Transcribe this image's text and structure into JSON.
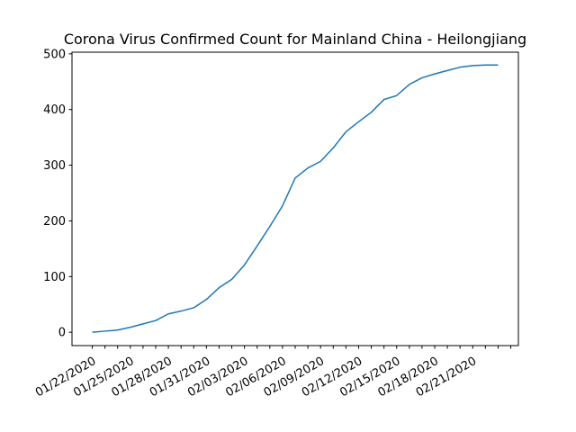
{
  "chart_data": {
    "type": "line",
    "title": "Corona Virus Confirmed Count for Mainland China - Heilongjiang",
    "xlabel": "",
    "ylabel": "",
    "ylim": [
      -23.95,
      502.95
    ],
    "yticks": [
      0,
      100,
      200,
      300,
      400,
      500
    ],
    "x_label_dates": [
      "01/22/2020",
      "01/25/2020",
      "01/28/2020",
      "01/31/2020",
      "02/03/2020",
      "02/06/2020",
      "02/09/2020",
      "02/12/2020",
      "02/15/2020",
      "02/18/2020",
      "02/21/2020"
    ],
    "grid": false,
    "series": [
      {
        "color": "#1f77b4",
        "x": [
          "01/22/2020",
          "01/23/2020",
          "01/24/2020",
          "01/25/2020",
          "01/26/2020",
          "01/27/2020",
          "01/28/2020",
          "01/29/2020",
          "01/30/2020",
          "01/31/2020",
          "02/01/2020",
          "02/02/2020",
          "02/03/2020",
          "02/04/2020",
          "02/05/2020",
          "02/06/2020",
          "02/07/2020",
          "02/08/2020",
          "02/09/2020",
          "02/10/2020",
          "02/11/2020",
          "02/12/2020",
          "02/13/2020",
          "02/14/2020",
          "02/15/2020",
          "02/16/2020",
          "02/17/2020",
          "02/18/2020",
          "02/19/2020",
          "02/20/2020",
          "02/21/2020",
          "02/22/2020",
          "02/23/2020"
        ],
        "values": [
          0,
          2,
          4,
          9,
          15,
          21,
          33,
          38,
          44,
          59,
          80,
          95,
          121,
          155,
          190,
          227,
          277,
          295,
          307,
          331,
          360,
          378,
          395,
          418,
          425,
          445,
          457,
          464,
          470,
          476,
          479,
          480,
          480
        ]
      }
    ]
  }
}
